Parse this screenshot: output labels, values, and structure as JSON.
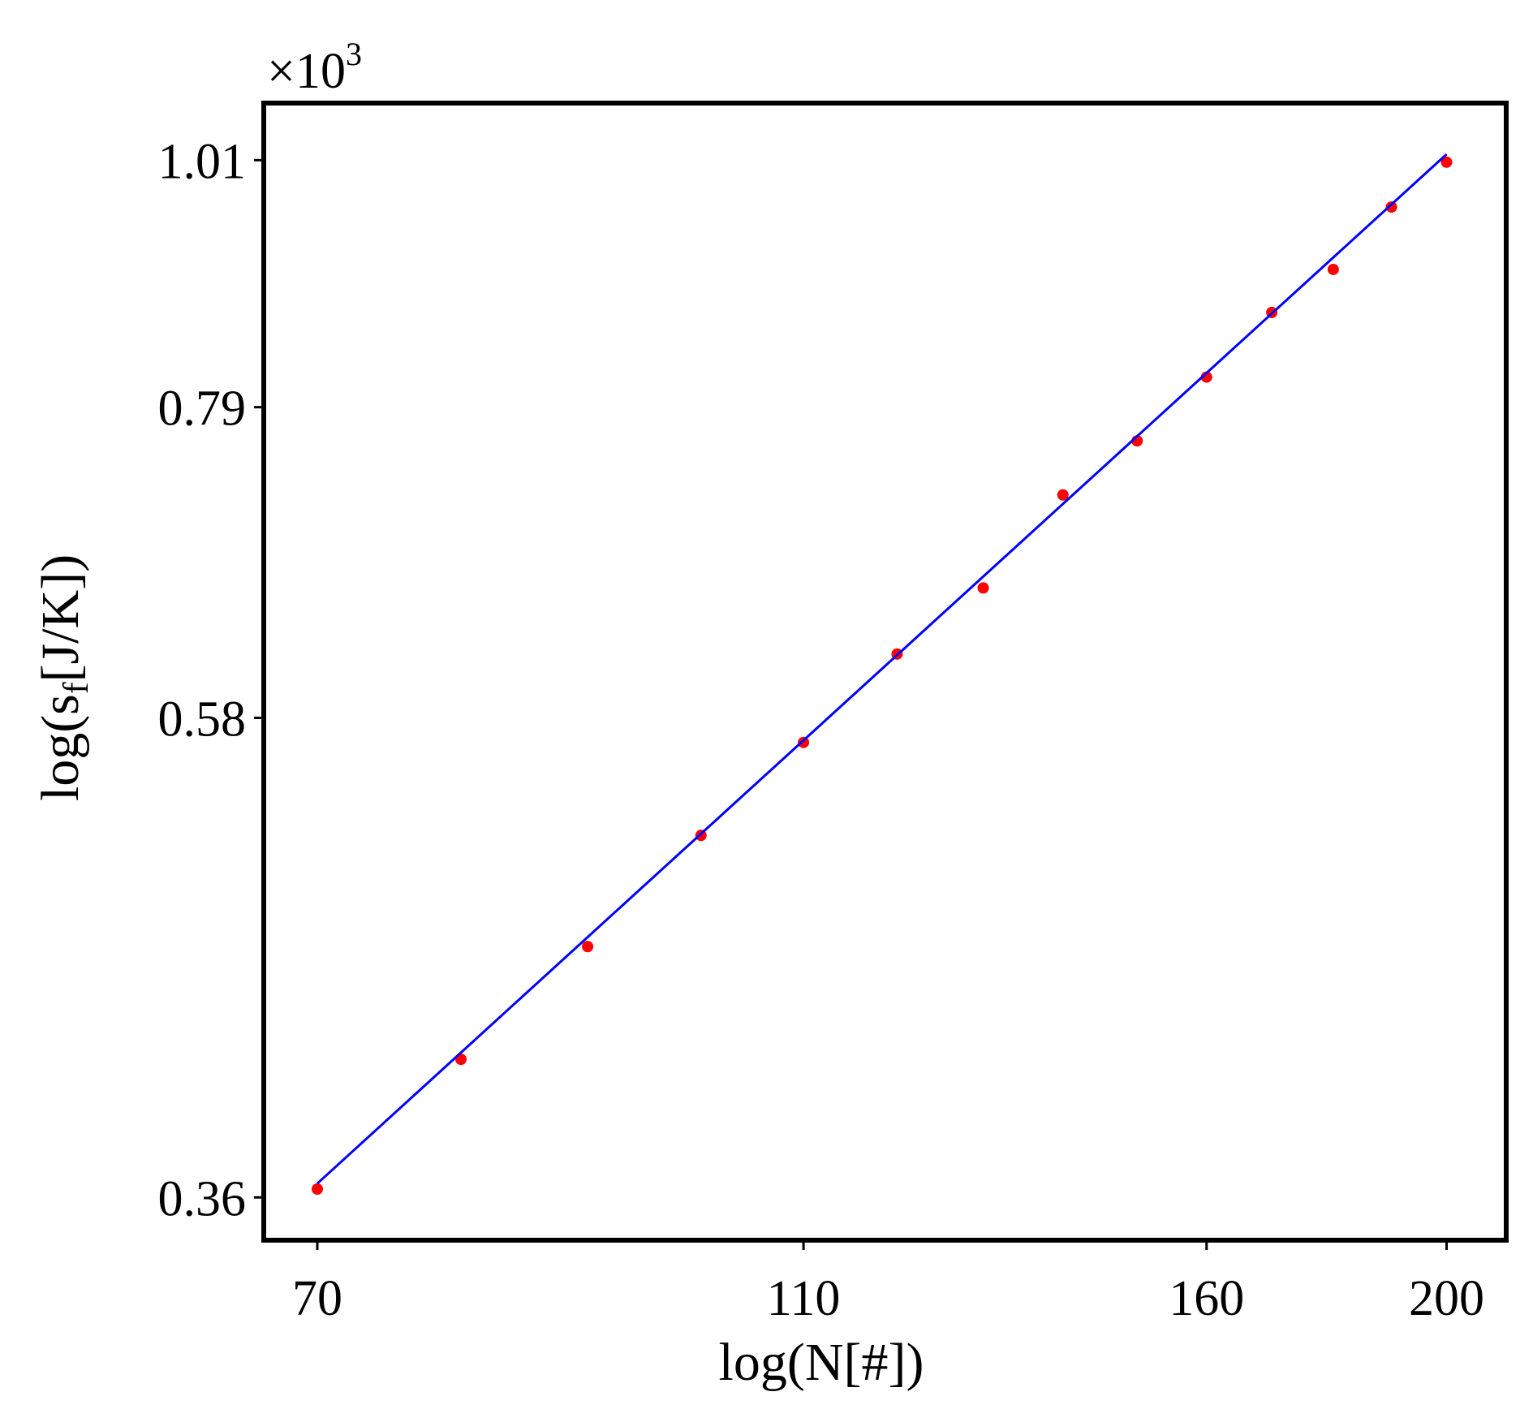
{
  "chart_data": {
    "type": "scatter",
    "xlabel": "log(N[#])",
    "ylabel": [
      "log(s",
      "f",
      "[J/K])"
    ],
    "y_multiplier": [
      "×10",
      "3"
    ],
    "xscale": "log",
    "yscale": "log",
    "xlim": [
      66.6,
      211.4
    ],
    "ylim": [
      345,
      1069
    ],
    "xticks": [
      70,
      110,
      160,
      200
    ],
    "yticks": [
      {
        "value": 360,
        "label": "0.36"
      },
      {
        "value": 580,
        "label": "0.58"
      },
      {
        "value": 790,
        "label": "0.79"
      },
      {
        "value": 1010,
        "label": "1.01"
      }
    ],
    "series": [
      {
        "kind": "points",
        "color": "#ff0000",
        "x": [
          70,
          80,
          90,
          100,
          110,
          120,
          130,
          140,
          150,
          160,
          170,
          180,
          190,
          200
        ],
        "values": [
          363,
          413,
          462,
          516,
          566,
          618,
          660,
          724,
          764,
          814,
          868,
          906,
          964,
          1008
        ]
      },
      {
        "kind": "line",
        "color": "#0000ff",
        "x": [
          70,
          200
        ],
        "values": [
          365,
          1016
        ]
      }
    ]
  }
}
